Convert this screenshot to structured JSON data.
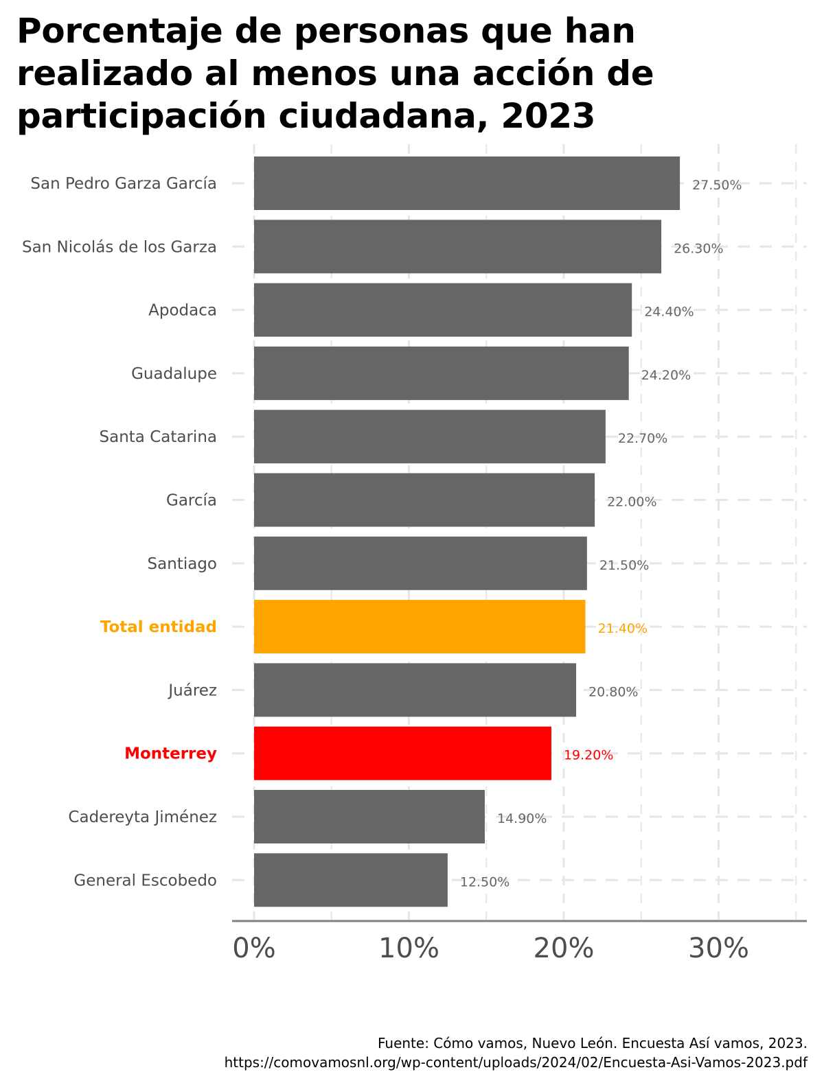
{
  "chart_data": {
    "type": "bar",
    "orientation": "horizontal",
    "title": "Porcentaje de personas que han realizado al menos una acción de participación ciudadana, 2023",
    "categories": [
      "San Pedro Garza García",
      "San Nicolás de los Garza",
      "Apodaca",
      "Guadalupe",
      "Santa Catarina",
      "García",
      "Santiago",
      "Total entidad",
      "Juárez",
      "Monterrey",
      "Cadereyta Jiménez",
      "General Escobedo"
    ],
    "values": [
      27.5,
      26.3,
      24.4,
      24.2,
      22.7,
      22.0,
      21.5,
      21.4,
      20.8,
      19.2,
      14.9,
      12.5
    ],
    "value_labels": [
      "27.50%",
      "26.30%",
      "24.40%",
      "24.20%",
      "22.70%",
      "22.00%",
      "21.50%",
      "21.40%",
      "20.80%",
      "19.20%",
      "14.90%",
      "12.50%"
    ],
    "highlight": {
      "Total entidad": "#FFA500",
      "Monterrey": "#FF0000"
    },
    "bar_color": "#666666",
    "x_ticks": [
      "0%",
      "10%",
      "20%",
      "30%"
    ],
    "x_tick_values": [
      0,
      10,
      20,
      30
    ],
    "xlim": [
      0,
      35
    ],
    "grid": true,
    "source_lines": [
      "Fuente: Cómo vamos, Nuevo León. Encuesta Así vamos, 2023.",
      "https://comovamosnl.org/wp-content/uploads/2024/02/Encuesta-Asi-Vamos-2023.pdf"
    ]
  }
}
